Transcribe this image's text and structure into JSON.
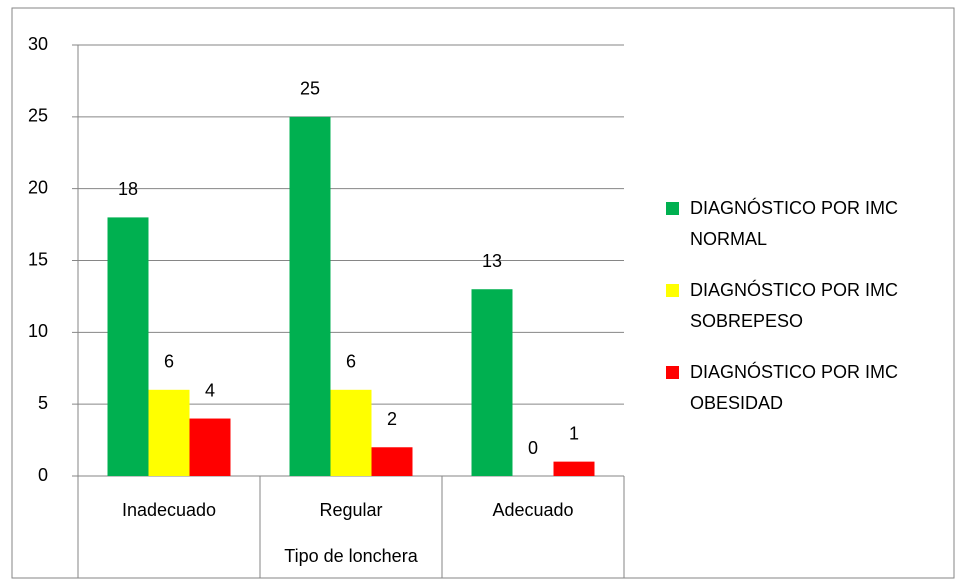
{
  "chart_data": {
    "type": "bar",
    "x_label": "Tipo de lonchera",
    "categories": [
      "Inadecuado",
      "Regular",
      "Adecuado"
    ],
    "series": [
      {
        "name": "DIAGNÓSTICO POR IMC NORMAL",
        "color": "#00b050",
        "values": [
          18,
          25,
          13
        ]
      },
      {
        "name": "DIAGNÓSTICO POR IMC SOBREPESO",
        "color": "#ffff00",
        "values": [
          6,
          6,
          0
        ]
      },
      {
        "name": "DIAGNÓSTICO POR IMC OBESIDAD",
        "color": "#ff0000",
        "values": [
          4,
          2,
          1
        ]
      }
    ],
    "ylim": [
      0,
      30
    ],
    "yticks": [
      0,
      5,
      10,
      15,
      20,
      25,
      30
    ],
    "grid": true,
    "legend": "right"
  }
}
